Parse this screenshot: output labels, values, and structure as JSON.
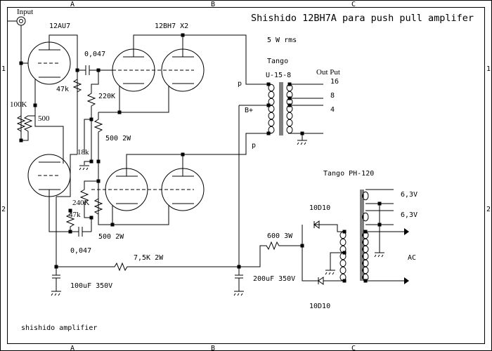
{
  "title": "Shishido 12BH7A para push pull amplifer",
  "footer": "shishido amplifier",
  "grid_labels": {
    "cols": [
      "A",
      "B",
      "C"
    ],
    "rows": [
      "1",
      "2"
    ]
  },
  "labels": {
    "input": "Input",
    "v1": "12AU7",
    "v2": "12BH7 X2",
    "c1": "0,047",
    "r_47k_top": "47k",
    "r_220k": "220K",
    "r_100k": "100K",
    "r_500": "500",
    "r_500_2w_top": "500 2W",
    "r_18k": "18k",
    "r_240k": "240K",
    "r_47k_bot": "47k",
    "r_500_2w_bot": "500 2W",
    "c2": "0,047",
    "r_7k5": "7,5K 2W",
    "c_100uf": "100uF 350V",
    "power": "5 W rms",
    "ot_brand": "Tango",
    "ot_model": "U-15-8",
    "output": "Out Put",
    "tap16": "16",
    "tap8": "8",
    "tap4": "4",
    "p_top": "p",
    "bplus": "B+",
    "p_bot": "p",
    "pt": "Tango PH-120",
    "heater1": "6,3V",
    "heater2": "6,3V",
    "diode1": "10D10",
    "r_600": "600 3W",
    "ac": "AC",
    "c_200uf": "200uF 350V",
    "diode2": "10D10"
  }
}
